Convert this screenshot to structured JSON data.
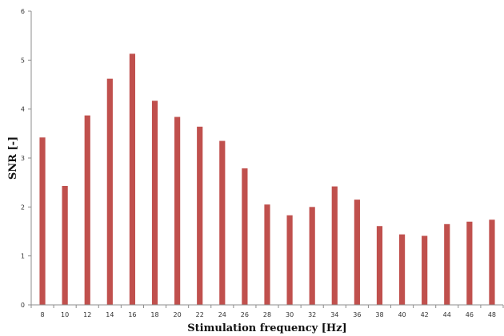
{
  "chart_data": {
    "type": "bar",
    "title": "",
    "xlabel": "Stimulation frequency [Hz]",
    "ylabel": "SNR [-]",
    "categories": [
      "8",
      "10",
      "12",
      "14",
      "16",
      "18",
      "20",
      "22",
      "24",
      "26",
      "28",
      "30",
      "32",
      "34",
      "36",
      "38",
      "40",
      "42",
      "44",
      "46",
      "48"
    ],
    "values": [
      3.42,
      2.43,
      3.87,
      4.62,
      5.13,
      4.17,
      3.84,
      3.64,
      3.35,
      2.79,
      2.05,
      1.83,
      2.0,
      2.42,
      2.15,
      1.61,
      1.44,
      1.41,
      1.65,
      1.7,
      1.74
    ],
    "ylim": [
      0,
      6
    ],
    "yticks": [
      "0",
      "1",
      "2",
      "3",
      "4",
      "5",
      "6"
    ],
    "grid": false,
    "legend": "none",
    "bar_color": "#c0504d",
    "axis_color": "#8c8c8c"
  }
}
